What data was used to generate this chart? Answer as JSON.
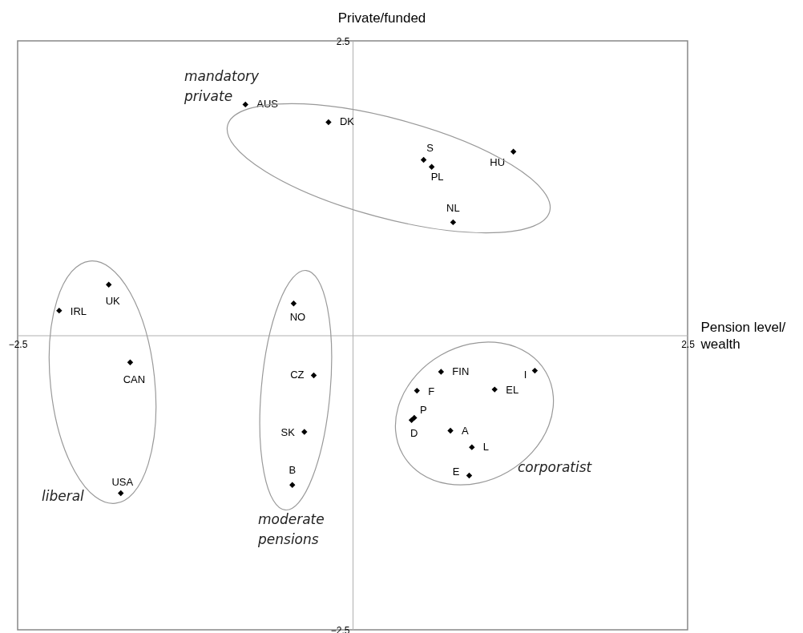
{
  "chart_data": {
    "type": "scatter",
    "xlabel": "Pension level/ wealth",
    "ylabel": "Private/funded",
    "xlim": [
      -2.5,
      2.5
    ],
    "ylim": [
      -2.5,
      2.5
    ],
    "xticks": [
      -2.5,
      2.5
    ],
    "yticks": [
      -2.5,
      2.5
    ],
    "grid": false,
    "legend": false,
    "marker": "diamond",
    "series": [
      {
        "name": "AUS",
        "color": "#000000",
        "x": [
          -0.8
        ],
        "values": [
          1.96
        ]
      },
      {
        "name": "DK",
        "color": "#000000",
        "x": [
          -0.18
        ],
        "values": [
          1.81
        ]
      },
      {
        "name": "S",
        "color": "#000000",
        "x": [
          0.53
        ],
        "values": [
          1.49
        ]
      },
      {
        "name": "PL",
        "color": "#000000",
        "x": [
          0.59
        ],
        "values": [
          1.43
        ]
      },
      {
        "name": "HU",
        "color": "#000000",
        "x": [
          1.2
        ],
        "values": [
          1.56
        ]
      },
      {
        "name": "NL",
        "color": "#000000",
        "x": [
          0.75
        ],
        "values": [
          0.96
        ]
      },
      {
        "name": "UK",
        "color": "#000000",
        "x": [
          -1.82
        ],
        "values": [
          0.43
        ]
      },
      {
        "name": "IRL",
        "color": "#000000",
        "x": [
          -2.19
        ],
        "values": [
          0.21
        ]
      },
      {
        "name": "NO",
        "color": "#000000",
        "x": [
          -0.44
        ],
        "values": [
          0.27
        ]
      },
      {
        "name": "CAN",
        "color": "#000000",
        "x": [
          -1.66
        ],
        "values": [
          -0.23
        ]
      },
      {
        "name": "CZ",
        "color": "#000000",
        "x": [
          -0.29
        ],
        "values": [
          -0.34
        ]
      },
      {
        "name": "SK",
        "color": "#000000",
        "x": [
          -0.36
        ],
        "values": [
          -0.82
        ]
      },
      {
        "name": "B",
        "color": "#000000",
        "x": [
          -0.45
        ],
        "values": [
          -1.27
        ]
      },
      {
        "name": "USA",
        "color": "#000000",
        "x": [
          -1.73
        ],
        "values": [
          -1.34
        ]
      },
      {
        "name": "FIN",
        "color": "#000000",
        "x": [
          0.66
        ],
        "values": [
          -0.31
        ]
      },
      {
        "name": "I",
        "color": "#000000",
        "x": [
          1.36
        ],
        "values": [
          -0.3
        ]
      },
      {
        "name": "F",
        "color": "#000000",
        "x": [
          0.48
        ],
        "values": [
          -0.47
        ]
      },
      {
        "name": "EL",
        "color": "#000000",
        "x": [
          1.06
        ],
        "values": [
          -0.46
        ]
      },
      {
        "name": "P",
        "color": "#000000",
        "x": [
          0.46
        ],
        "values": [
          -0.7
        ]
      },
      {
        "name": "D",
        "color": "#000000",
        "x": [
          0.44
        ],
        "values": [
          -0.72
        ]
      },
      {
        "name": "A",
        "color": "#000000",
        "x": [
          0.73
        ],
        "values": [
          -0.81
        ]
      },
      {
        "name": "L",
        "color": "#000000",
        "x": [
          0.89
        ],
        "values": [
          -0.95
        ]
      },
      {
        "name": "E",
        "color": "#000000",
        "x": [
          0.87
        ],
        "values": [
          -1.19
        ]
      }
    ],
    "annotations": [
      "mandatory private",
      "liberal",
      "moderate pensions",
      "corporatist"
    ]
  }
}
